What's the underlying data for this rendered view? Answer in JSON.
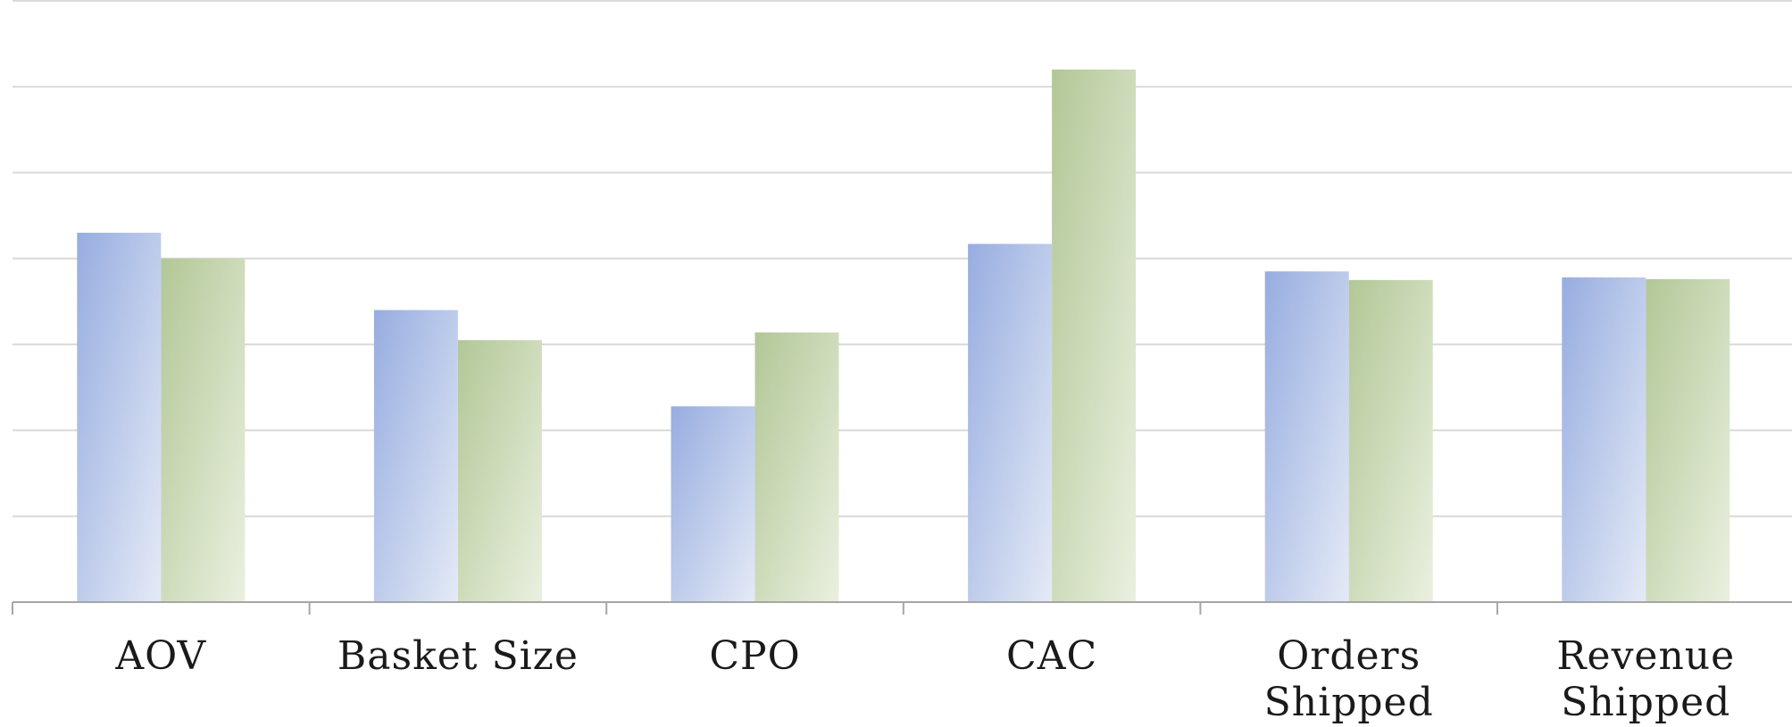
{
  "chart_data": {
    "type": "bar",
    "categories": [
      [
        "AOV"
      ],
      [
        "Basket Size"
      ],
      [
        "CPO"
      ],
      [
        "CAC"
      ],
      [
        "Orders",
        "Shipped"
      ],
      [
        "Revenue",
        "Shipped"
      ]
    ],
    "series": [
      {
        "color": "#9db3e3",
        "values": [
          4.3,
          3.4,
          2.28,
          4.17,
          3.85,
          3.78
        ]
      },
      {
        "color": "#b8cc9c",
        "values": [
          4.0,
          3.05,
          3.14,
          6.2,
          3.75,
          3.76
        ]
      }
    ],
    "ylim": [
      0,
      7
    ],
    "grid": true,
    "legend": "none"
  }
}
